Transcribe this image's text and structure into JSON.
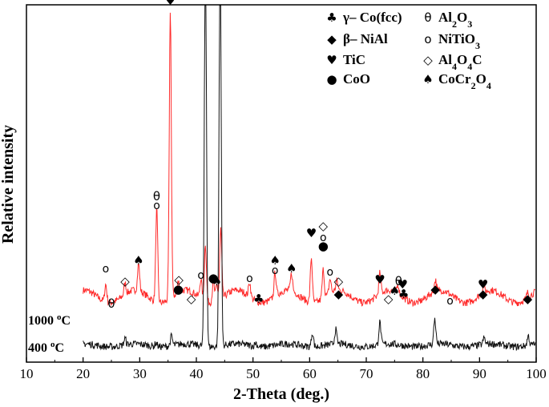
{
  "chart_data": {
    "type": "line",
    "xlabel": "2-Theta (deg.)",
    "ylabel": "Relative intensity",
    "xlim": [
      10,
      100
    ],
    "xticks": [
      "10",
      "20",
      "30",
      "40",
      "50",
      "60",
      "70",
      "80",
      "90",
      "100"
    ],
    "legend_position": "top-right",
    "legend": [
      {
        "sym": "♣",
        "name": "γ– Co(fcc)",
        "col": 0
      },
      {
        "sym": "◆",
        "name": "β– NiAl",
        "col": 0
      },
      {
        "sym": "♥",
        "name": "TiC",
        "col": 0
      },
      {
        "sym": "●",
        "name": "CoO",
        "col": 0
      },
      {
        "sym": "θ",
        "name": "Al2O3",
        "col": 1
      },
      {
        "sym": "o",
        "name": "NiTiO3",
        "col": 1
      },
      {
        "sym": "◇",
        "name": "Al4O4C",
        "col": 1
      },
      {
        "sym": "♠",
        "name": "CoCr2O4",
        "col": 1
      }
    ],
    "series": [
      {
        "name": "1000 °C",
        "label_main": "1000 ",
        "label_sup": "o",
        "label_unit": "C",
        "color": "#ff2a2a",
        "baseline": 0.065,
        "peaks": [
          [
            24.0,
            0.055
          ],
          [
            27.4,
            0.035
          ],
          [
            29.8,
            0.085
          ],
          [
            33.0,
            0.29
          ],
          [
            35.4,
            0.9
          ],
          [
            36.8,
            0.035
          ],
          [
            40.8,
            0.06
          ],
          [
            41.6,
            0.18
          ],
          [
            43.0,
            0.065
          ],
          [
            43.6,
            0.05
          ],
          [
            44.3,
            0.22
          ],
          [
            49.4,
            0.045
          ],
          [
            53.9,
            0.075
          ],
          [
            56.8,
            0.055
          ],
          [
            60.3,
            0.14
          ],
          [
            62.4,
            0.09
          ],
          [
            63.6,
            0.045
          ],
          [
            64.8,
            0.03
          ],
          [
            72.4,
            0.065
          ],
          [
            75.6,
            0.028
          ],
          [
            82.2,
            0.035
          ],
          [
            90.7,
            0.022
          ],
          [
            98.5,
            0.015
          ]
        ]
      },
      {
        "name": "400 °C",
        "label_main": "400 ",
        "label_sup": "o",
        "label_unit": "C",
        "color": "#111111",
        "baseline": 0.015,
        "peaks": [
          [
            27.4,
            0.02
          ],
          [
            32.9,
            0.012
          ],
          [
            35.6,
            0.03
          ],
          [
            41.6,
            1.3
          ],
          [
            44.2,
            1.3
          ],
          [
            50.5,
            0.012
          ],
          [
            60.5,
            0.045
          ],
          [
            64.6,
            0.045
          ],
          [
            72.4,
            0.07
          ],
          [
            82.1,
            0.08
          ],
          [
            90.8,
            0.02
          ],
          [
            98.6,
            0.03
          ]
        ]
      }
    ],
    "markers": [
      {
        "x": 24.0,
        "y": 0.14,
        "s": "o"
      },
      {
        "x": 25.0,
        "y": 0.03,
        "s": "θ"
      },
      {
        "x": 27.4,
        "y": 0.1,
        "s": "◇"
      },
      {
        "x": 29.8,
        "y": 0.165,
        "s": "♠"
      },
      {
        "x": 33.0,
        "y": 0.365,
        "s": "θ"
      },
      {
        "x": 33.0,
        "y": 0.337,
        "s": "o"
      },
      {
        "x": 35.4,
        "y": 1.03,
        "s": "♠"
      },
      {
        "x": 35.4,
        "y": 1.005,
        "s": "o"
      },
      {
        "x": 35.4,
        "y": 0.975,
        "s": "♥"
      },
      {
        "x": 36.8,
        "y": 0.075,
        "s": "●"
      },
      {
        "x": 36.9,
        "y": 0.105,
        "s": "◇"
      },
      {
        "x": 39.1,
        "y": 0.045,
        "s": "◇"
      },
      {
        "x": 40.8,
        "y": 0.12,
        "s": "o"
      },
      {
        "x": 40.9,
        "y": 1.03,
        "s": "♥"
      },
      {
        "x": 43.0,
        "y": 0.11,
        "s": "●"
      },
      {
        "x": 43.6,
        "y": 0.1,
        "s": "♠"
      },
      {
        "x": 45.5,
        "y": 1.02,
        "s": "♣"
      },
      {
        "x": 49.4,
        "y": 0.11,
        "s": "o"
      },
      {
        "x": 51.0,
        "y": 0.045,
        "s": "♣"
      },
      {
        "x": 53.9,
        "y": 0.165,
        "s": "♠"
      },
      {
        "x": 53.9,
        "y": 0.135,
        "s": "o"
      },
      {
        "x": 56.8,
        "y": 0.14,
        "s": "♠"
      },
      {
        "x": 60.3,
        "y": 0.25,
        "s": "♥"
      },
      {
        "x": 62.4,
        "y": 0.272,
        "s": "◇"
      },
      {
        "x": 62.4,
        "y": 0.237,
        "s": "o"
      },
      {
        "x": 62.4,
        "y": 0.21,
        "s": "●"
      },
      {
        "x": 63.6,
        "y": 0.13,
        "s": "o"
      },
      {
        "x": 65.1,
        "y": 0.1,
        "s": "◇"
      },
      {
        "x": 65.1,
        "y": 0.06,
        "s": "◆"
      },
      {
        "x": 72.4,
        "y": 0.105,
        "s": "♥"
      },
      {
        "x": 73.9,
        "y": 0.045,
        "s": "◇"
      },
      {
        "x": 75.0,
        "y": 0.07,
        "s": "♠"
      },
      {
        "x": 75.7,
        "y": 0.1,
        "s": "θ"
      },
      {
        "x": 76.4,
        "y": 0.09,
        "s": "♥"
      },
      {
        "x": 76.6,
        "y": 0.06,
        "s": "♣"
      },
      {
        "x": 82.2,
        "y": 0.075,
        "s": "◆"
      },
      {
        "x": 84.8,
        "y": 0.04,
        "s": "o"
      },
      {
        "x": 90.6,
        "y": 0.09,
        "s": "♥"
      },
      {
        "x": 90.6,
        "y": 0.06,
        "s": "◆"
      },
      {
        "x": 98.5,
        "y": 0.045,
        "s": "◆"
      }
    ]
  }
}
